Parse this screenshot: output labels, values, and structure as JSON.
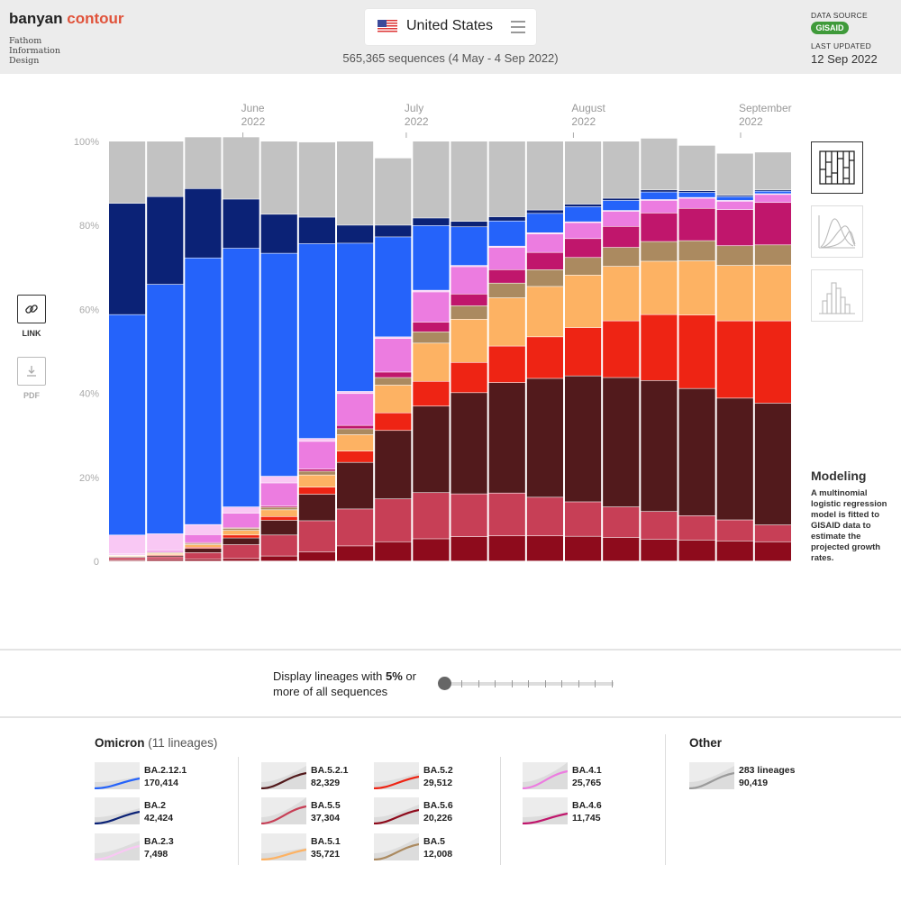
{
  "header": {
    "brand_part1": "banyan",
    "brand_part2": "contour",
    "byline": "Fathom Information Design",
    "country": "United States",
    "sequences": "565,365 sequences (4 May - 4 Sep 2022)",
    "data_source_label": "DATA SOURCE",
    "data_source_logo": "GISAID",
    "last_updated_label": "LAST UPDATED",
    "last_updated_value": "12 Sep 2022"
  },
  "left_controls": {
    "link_label": "LINK",
    "pdf_label": "PDF",
    "link_icon": "link-icon",
    "pdf_icon": "download-icon"
  },
  "right_panel": {
    "views": [
      "stacked-bars-icon",
      "density-curves-icon",
      "histogram-icon"
    ],
    "model_title": "Modeling",
    "model_text": "A multinomial logistic regression model is fitted to GISAID data to estimate the projected growth rates."
  },
  "threshold": {
    "text_before": "Display lineages with ",
    "value": "5%",
    "text_after": " or more of all sequences"
  },
  "chart_data": {
    "type": "bar",
    "stacked": true,
    "normalized": true,
    "x_labels": [
      {
        "week_index": 3.5,
        "label": "June",
        "year": "2022"
      },
      {
        "week_index": 7.8,
        "label": "July",
        "year": "2022"
      },
      {
        "week_index": 12.2,
        "label": "August",
        "year": "2022"
      },
      {
        "week_index": 16.6,
        "label": "September",
        "year": "2022"
      }
    ],
    "y_ticks": [
      {
        "value": 0,
        "label": "0"
      },
      {
        "value": 20,
        "label": "20%"
      },
      {
        "value": 40,
        "label": "40%"
      },
      {
        "value": 60,
        "label": "60%"
      },
      {
        "value": 80,
        "label": "80%"
      },
      {
        "value": 100,
        "label": "100%"
      }
    ],
    "ylim": [
      0,
      100
    ],
    "weeks": 18,
    "series_order": [
      "BA.5.2.1",
      "BA.5.5",
      "BA.5.2",
      "BA.5.1",
      "BA.5",
      "BA.5.6",
      "BA.4.6",
      "BA.4.1",
      "BA.2.3",
      "BA.2.12.1",
      "BA.2",
      "Other"
    ],
    "colors": {
      "BA.5.2.1": "#521a1c",
      "BA.5.5": "#c73f56",
      "BA.5.2": "#ee2414",
      "BA.5.1": "#fdb263",
      "BA.5": "#ab8a60",
      "BA.5.6": "#8e0b1c",
      "BA.4.6": "#c0166c",
      "BA.4.1": "#ec7ce0",
      "BA.2.3": "#f9c8f4",
      "BA.2.12.1": "#2563fa",
      "BA.2": "#0b2276",
      "Other": "#c2c2c2"
    },
    "stack_bottom_to_top": [
      "BA.5.6",
      "BA.5.5",
      "BA.5.2.1",
      "BA.5.2",
      "BA.5.1",
      "BA.5",
      "BA.4.6",
      "BA.4.1",
      "BA.2.3",
      "BA.2.12.1",
      "BA.2",
      "Other"
    ],
    "values": {
      "BA.5.6": [
        0.3,
        0.4,
        0.5,
        0.6,
        1.2,
        2.2,
        3.6,
        4.6,
        5.3,
        5.8,
        6.0,
        6.0,
        5.9,
        5.6,
        5.2,
        5.0,
        4.8,
        4.6
      ],
      "BA.5.5": [
        0.5,
        0.6,
        1.5,
        3.3,
        5.0,
        7.4,
        8.8,
        10.2,
        11.0,
        10.2,
        10.2,
        9.2,
        8.2,
        7.3,
        6.6,
        5.8,
        5.0,
        4.0
      ],
      "BA.5.2.1": [
        0.2,
        0.3,
        1.0,
        1.6,
        3.5,
        6.3,
        11.1,
        16.3,
        20.6,
        24.1,
        26.3,
        28.3,
        30.0,
        30.8,
        31.2,
        30.3,
        29.0,
        29.0
      ],
      "BA.5.2": [
        0.1,
        0.2,
        0.3,
        0.7,
        0.9,
        1.7,
        2.7,
        4.2,
        5.9,
        7.2,
        8.7,
        9.9,
        11.5,
        13.5,
        15.7,
        17.5,
        18.4,
        19.6
      ],
      "BA.5.1": [
        0.2,
        0.3,
        0.6,
        1.1,
        1.6,
        2.9,
        3.9,
        6.6,
        9.1,
        10.3,
        11.5,
        12.0,
        12.5,
        13.0,
        12.7,
        12.9,
        13.2,
        13.3
      ],
      "BA.5": [
        0.1,
        0.2,
        0.3,
        0.5,
        0.6,
        0.9,
        1.4,
        1.8,
        2.7,
        3.2,
        3.5,
        4.0,
        4.2,
        4.5,
        4.7,
        4.8,
        4.7,
        4.8
      ],
      "BA.4.6": [
        0.1,
        0.1,
        0.2,
        0.2,
        0.3,
        0.5,
        0.8,
        1.3,
        2.3,
        2.8,
        3.2,
        4.1,
        4.5,
        5.0,
        6.8,
        7.7,
        8.6,
        10.1
      ],
      "BA.4.1": [
        0.2,
        0.4,
        1.9,
        3.4,
        5.5,
        6.6,
        7.6,
        8.0,
        7.2,
        6.5,
        5.3,
        4.4,
        3.8,
        3.6,
        3.0,
        2.4,
        2.0,
        1.9
      ],
      "BA.2.3": [
        4.5,
        4.0,
        2.4,
        1.5,
        1.6,
        0.7,
        0.5,
        0.4,
        0.4,
        0.3,
        0.3,
        0.3,
        0.2,
        0.2,
        0.2,
        0.2,
        0.2,
        0.2
      ],
      "BA.2.12.1": [
        52.5,
        59.4,
        63.5,
        61.6,
        53.1,
        46.4,
        35.3,
        23.8,
        15.4,
        9.2,
        6.0,
        4.6,
        3.6,
        2.4,
        1.8,
        1.2,
        0.9,
        0.6
      ],
      "BA.2": [
        26.5,
        20.9,
        16.5,
        11.7,
        9.3,
        6.3,
        4.3,
        2.8,
        1.8,
        1.3,
        1.0,
        0.8,
        0.6,
        0.5,
        0.5,
        0.4,
        0.3,
        0.3
      ],
      "Other": [
        14.8,
        13.2,
        12.3,
        14.8,
        17.4,
        17.9,
        20.0,
        16.0,
        18.3,
        19.1,
        18.0,
        16.4,
        15.0,
        13.6,
        12.3,
        10.8,
        10.0,
        9.0
      ]
    }
  },
  "lineages": {
    "omicron_title": "Omicron",
    "omicron_count": "(11 lineages)",
    "other_title": "Other",
    "items": [
      {
        "name": "BA.2.12.1",
        "count": "170,414",
        "color": "#2563fa"
      },
      {
        "name": "BA.2",
        "count": "42,424",
        "color": "#0b2276"
      },
      {
        "name": "BA.2.3",
        "count": "7,498",
        "color": "#f9c8f4"
      },
      {
        "name": "BA.5.2.1",
        "count": "82,329",
        "color": "#521a1c"
      },
      {
        "name": "BA.5.5",
        "count": "37,304",
        "color": "#c73f56"
      },
      {
        "name": "BA.5.1",
        "count": "35,721",
        "color": "#fdb263"
      },
      {
        "name": "BA.5.2",
        "count": "29,512",
        "color": "#ee2414"
      },
      {
        "name": "BA.5.6",
        "count": "20,226",
        "color": "#8e0b1c"
      },
      {
        "name": "BA.5",
        "count": "12,008",
        "color": "#ab8a60"
      },
      {
        "name": "BA.4.1",
        "count": "25,765",
        "color": "#ec7ce0"
      },
      {
        "name": "BA.4.6",
        "count": "11,745",
        "color": "#c0166c"
      }
    ],
    "other": {
      "name": "283 lineages",
      "count": "90,419",
      "color": "#9a9a9a"
    }
  }
}
